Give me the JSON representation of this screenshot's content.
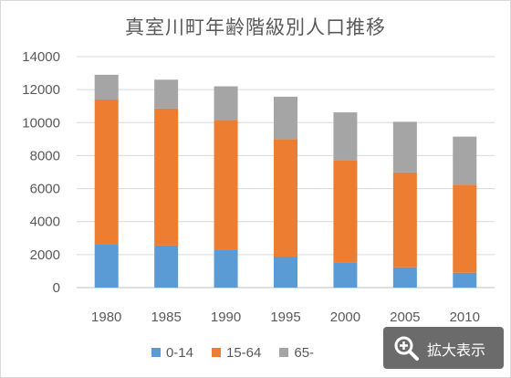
{
  "chart_data": {
    "type": "bar",
    "stacked": true,
    "title": "真室川町年齢階級別人口推移",
    "categories": [
      "1980",
      "1985",
      "1990",
      "1995",
      "2000",
      "2005",
      "2010"
    ],
    "series": [
      {
        "name": "0-14",
        "color": "#5b9bd5",
        "values": [
          2650,
          2550,
          2270,
          1880,
          1540,
          1230,
          900
        ]
      },
      {
        "name": "15-64",
        "color": "#ed7d31",
        "values": [
          8750,
          8300,
          7880,
          7120,
          6190,
          5750,
          5340
        ]
      },
      {
        "name": "65-",
        "color": "#a5a5a5",
        "values": [
          1500,
          1750,
          2050,
          2570,
          2890,
          3070,
          2910
        ]
      }
    ],
    "ylim": [
      0,
      14000
    ],
    "yticks": [
      0,
      2000,
      4000,
      6000,
      8000,
      10000,
      12000,
      14000
    ],
    "grid": true,
    "legend_position": "bottom"
  },
  "zoom_button": {
    "label": "拡大表示",
    "icon": "zoom-in-icon"
  }
}
